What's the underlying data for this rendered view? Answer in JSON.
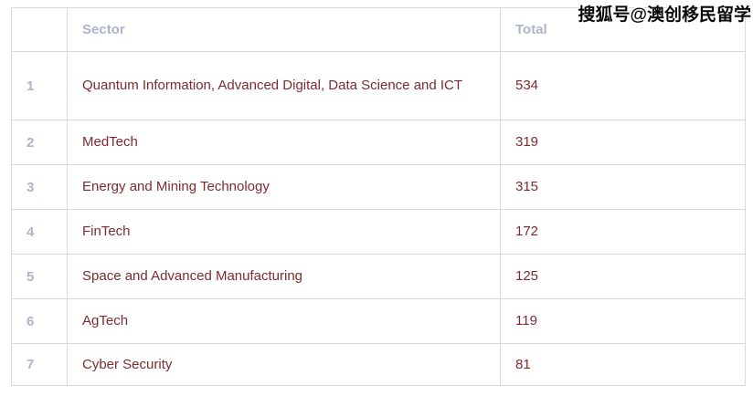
{
  "watermark": {
    "text": "搜狐号@澳创移民留学"
  },
  "colors": {
    "body_text": "#7d2b2e",
    "header_text": "#adb4c7",
    "rank_text": "#adb4c7",
    "border": "#d9d9d9",
    "background": "#ffffff",
    "watermark_fill": "#0a0a0a",
    "watermark_outline": "#ffffff"
  },
  "table": {
    "headers": {
      "rank": "",
      "sector": "Sector",
      "total": "Total"
    },
    "rows": [
      {
        "rank": "1",
        "sector": "Quantum Information, Advanced Digital, Data Science and ICT",
        "total": "534"
      },
      {
        "rank": "2",
        "sector": "MedTech",
        "total": "319"
      },
      {
        "rank": "3",
        "sector": "Energy and Mining Technology",
        "total": "315"
      },
      {
        "rank": "4",
        "sector": "FinTech",
        "total": "172"
      },
      {
        "rank": "5",
        "sector": "Space and Advanced Manufacturing",
        "total": "125"
      },
      {
        "rank": "6",
        "sector": "AgTech",
        "total": "119"
      },
      {
        "rank": "7",
        "sector": "Cyber Security",
        "total": "81"
      }
    ]
  },
  "chart_data": {
    "type": "table",
    "columns": [
      "",
      "Sector",
      "Total"
    ],
    "rows": [
      [
        "1",
        "Quantum Information, Advanced Digital, Data Science and ICT",
        534
      ],
      [
        "2",
        "MedTech",
        319
      ],
      [
        "3",
        "Energy and Mining Technology",
        315
      ],
      [
        "4",
        "FinTech",
        172
      ],
      [
        "5",
        "Space and Advanced Manufacturing",
        125
      ],
      [
        "6",
        "AgTech",
        119
      ],
      [
        "7",
        "Cyber Security",
        81
      ]
    ]
  }
}
